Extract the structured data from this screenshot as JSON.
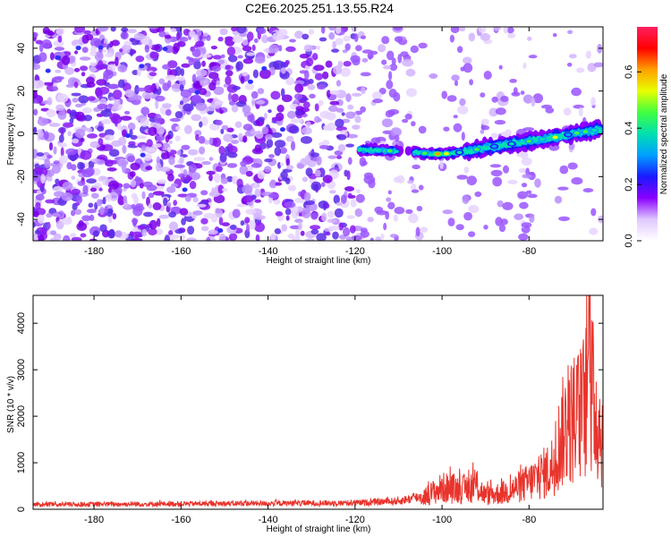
{
  "title": "C2E6.2025.251.13.55.R24",
  "chart_data": [
    {
      "type": "heatmap",
      "xlabel": "Height of straight line (km)",
      "ylabel": "Frequency (Hz)",
      "xlim": [
        -194,
        -63
      ],
      "ylim": [
        -50,
        50
      ],
      "x_ticks": [
        -180,
        -160,
        -140,
        -120,
        -100,
        -80
      ],
      "y_ticks": [
        -40,
        -20,
        0,
        20,
        40
      ],
      "colorbar": {
        "label": "Normalized spectral amplitude",
        "range": [
          0.0,
          0.76
        ],
        "ticks": [
          "0.0",
          "0.2",
          "0.4",
          "0.6"
        ],
        "tick_values": [
          0.0,
          0.2,
          0.4,
          0.6
        ],
        "colors": [
          "#ffffff",
          "#e0c8ff",
          "#8a00ff",
          "#1a1aff",
          "#00a0ff",
          "#00e0b0",
          "#40ff40",
          "#e8ff00",
          "#ffa000",
          "#ff0000",
          "#ff2060"
        ]
      },
      "signal_track": [
        {
          "x": -119,
          "y": -7.5
        },
        {
          "x": -112,
          "y": -8.0
        },
        {
          "x": -108,
          "y": -8.5
        },
        {
          "x": -105,
          "y": -9.0
        },
        {
          "x": -100,
          "y": -9.5
        },
        {
          "x": -95,
          "y": -8.5
        },
        {
          "x": -90,
          "y": -6.5
        },
        {
          "x": -85,
          "y": -5.0
        },
        {
          "x": -80,
          "y": -3.5
        },
        {
          "x": -75,
          "y": -2.0
        },
        {
          "x": -70,
          "y": 0.0
        },
        {
          "x": -64,
          "y": 2.0
        }
      ]
    },
    {
      "type": "line",
      "xlabel": "Height of straight line (km)",
      "ylabel": "SNR (10 * v/v)",
      "xlim": [
        -194,
        -63
      ],
      "ylim": [
        0,
        4600
      ],
      "x_ticks": [
        -180,
        -160,
        -140,
        -120,
        -100,
        -80
      ],
      "y_ticks": [
        0,
        1000,
        2000,
        3000,
        4000
      ],
      "line_color": "#e8342c",
      "envelope": [
        {
          "x": -194,
          "y": 150
        },
        {
          "x": -120,
          "y": 200
        },
        {
          "x": -110,
          "y": 260
        },
        {
          "x": -105,
          "y": 400
        },
        {
          "x": -100,
          "y": 800
        },
        {
          "x": -95,
          "y": 750
        },
        {
          "x": -92,
          "y": 900
        },
        {
          "x": -90,
          "y": 500
        },
        {
          "x": -85,
          "y": 650
        },
        {
          "x": -80,
          "y": 1000
        },
        {
          "x": -75,
          "y": 1500
        },
        {
          "x": -72,
          "y": 3000
        },
        {
          "x": -68,
          "y": 3600
        },
        {
          "x": -66,
          "y": 4600
        },
        {
          "x": -63,
          "y": 2600
        }
      ]
    }
  ]
}
